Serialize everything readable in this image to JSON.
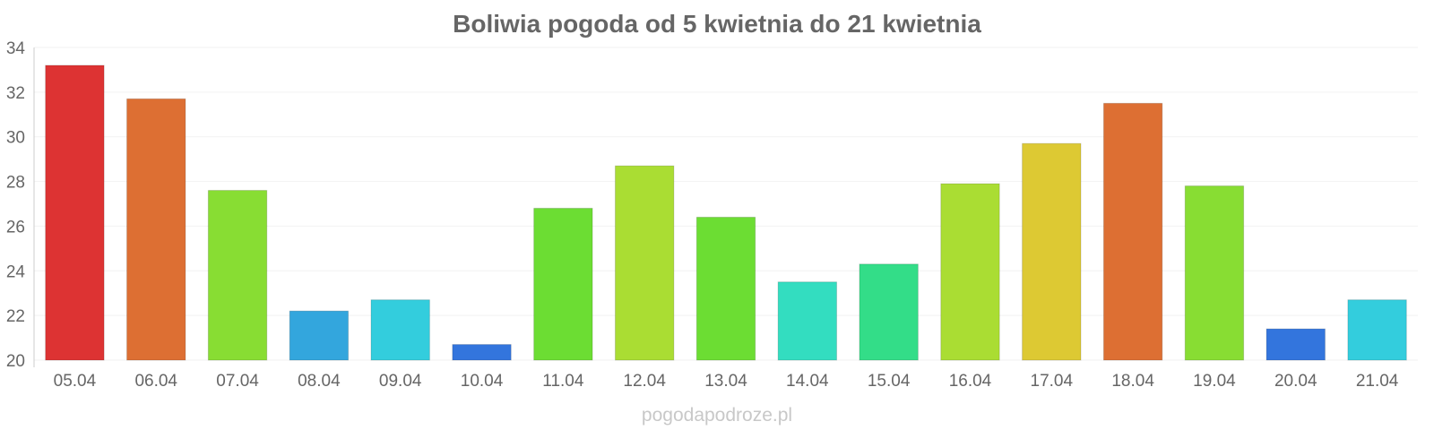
{
  "chart_data": {
    "type": "bar",
    "title": "Boliwia pogoda od 5 kwietnia do 21 kwietnia",
    "xlabel": "",
    "ylabel": "",
    "ylim": [
      20,
      34
    ],
    "yticks": [
      "20",
      "22",
      "24",
      "26",
      "28",
      "30",
      "32",
      "34"
    ],
    "grid": true,
    "categories": [
      "05.04",
      "06.04",
      "07.04",
      "08.04",
      "09.04",
      "10.04",
      "11.04",
      "12.04",
      "13.04",
      "14.04",
      "15.04",
      "16.04",
      "17.04",
      "18.04",
      "19.04",
      "20.04",
      "21.04"
    ],
    "values": [
      33.2,
      31.7,
      27.6,
      22.2,
      22.7,
      20.7,
      26.8,
      28.7,
      26.4,
      23.5,
      24.3,
      27.9,
      29.7,
      31.5,
      27.8,
      21.4,
      22.7
    ],
    "colors": [
      "#dd3333",
      "#dd6f33",
      "#88dd33",
      "#33a6dd",
      "#33cddd",
      "#3375dd",
      "#6cdd33",
      "#aadd33",
      "#6cdd33",
      "#33ddc0",
      "#33dd88",
      "#aadd33",
      "#ddc933",
      "#dd6f33",
      "#88dd33",
      "#3375dd",
      "#33cddd"
    ]
  },
  "watermark": "pogodapodroze.pl"
}
